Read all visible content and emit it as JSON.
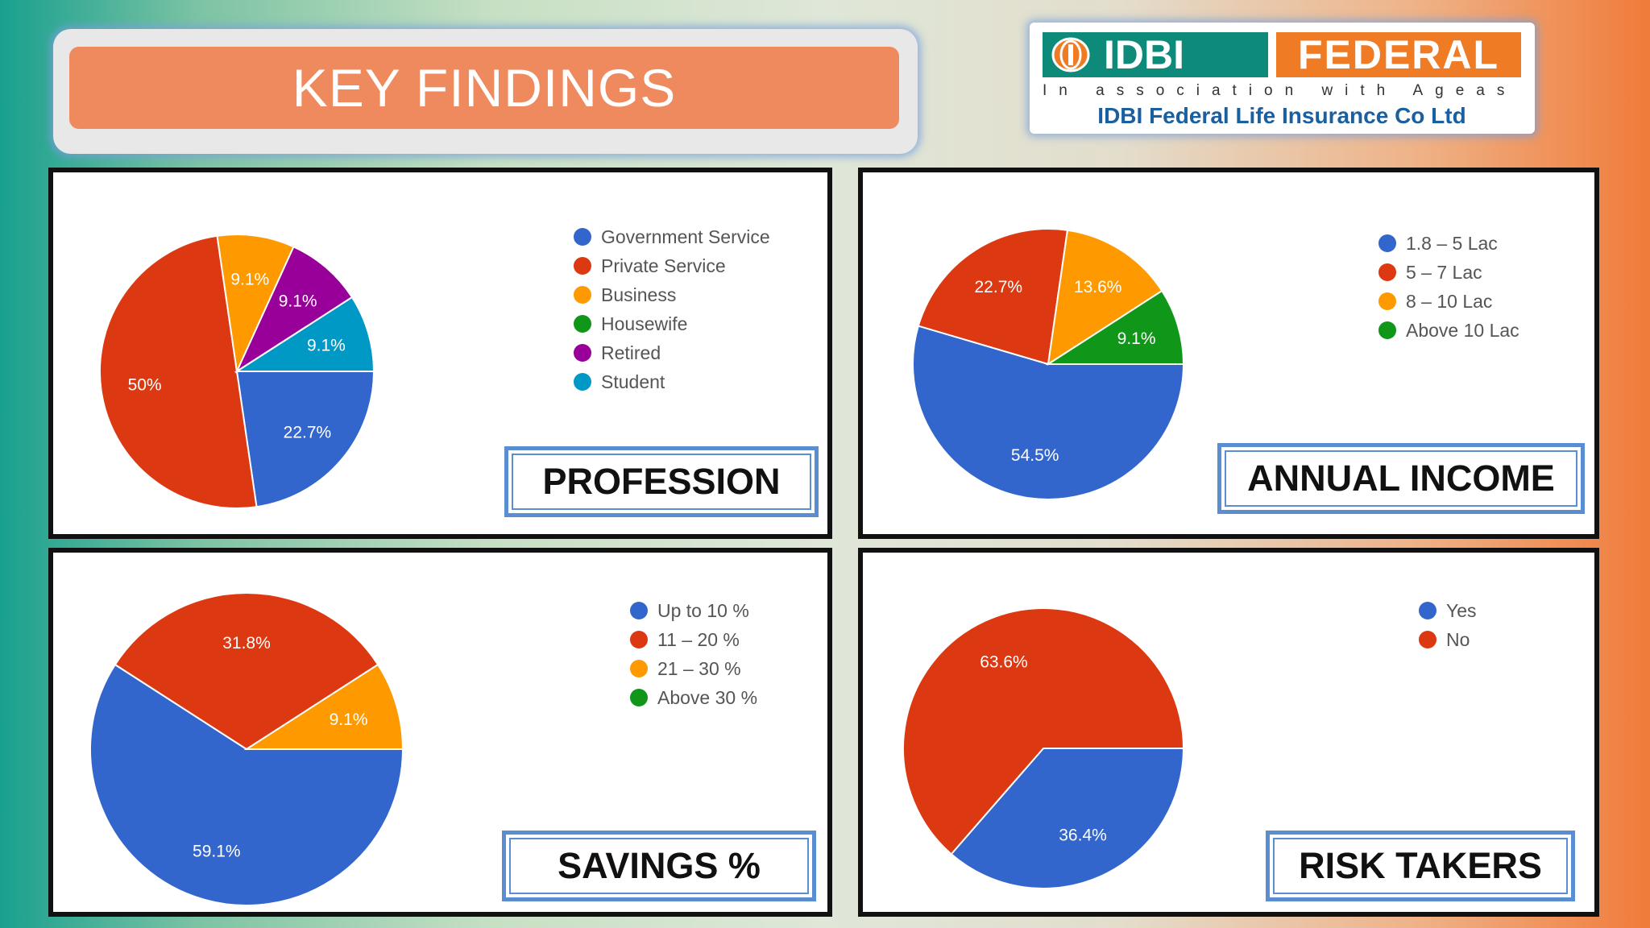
{
  "header": {
    "title": "KEY FINDINGS"
  },
  "logo": {
    "brand_left": "IDBI",
    "brand_right": "FEDERAL",
    "tagline": "In association with Ageas",
    "company": "IDBI Federal Life Insurance Co Ltd"
  },
  "colors": {
    "blue": "#3366cc",
    "red": "#dc3912",
    "orange": "#ff9900",
    "green": "#109618",
    "purple": "#990099",
    "cyan": "#0099c6"
  },
  "chart_data": [
    {
      "type": "pie",
      "title": "PROFESSION",
      "categories": [
        "Government Service",
        "Private Service",
        "Business",
        "Housewife",
        "Retired",
        "Student"
      ],
      "values": [
        22.7,
        50,
        9.1,
        0,
        9.1,
        9.1
      ],
      "labels": [
        "22.7%",
        "50%",
        "9.1%",
        "",
        "9.1%",
        "9.1%"
      ],
      "colors": [
        "#3366cc",
        "#dc3912",
        "#ff9900",
        "#109618",
        "#990099",
        "#0099c6"
      ],
      "legend": "right"
    },
    {
      "type": "pie",
      "title": "ANNUAL INCOME",
      "categories": [
        "1.8 – 5 Lac",
        "5 – 7 Lac",
        "8 – 10 Lac",
        "Above 10 Lac"
      ],
      "values": [
        54.5,
        22.7,
        13.6,
        9.1
      ],
      "labels": [
        "54.5%",
        "22.7%",
        "13.6%",
        "9.1%"
      ],
      "colors": [
        "#3366cc",
        "#dc3912",
        "#ff9900",
        "#109618"
      ],
      "legend": "right"
    },
    {
      "type": "pie",
      "title": "SAVINGS %",
      "categories": [
        "Up to 10 %",
        "11 – 20 %",
        "21 – 30 %",
        "Above 30 %"
      ],
      "values": [
        59.1,
        31.8,
        9.1,
        0
      ],
      "labels": [
        "59.1%",
        "31.8%",
        "9.1%",
        ""
      ],
      "colors": [
        "#3366cc",
        "#dc3912",
        "#ff9900",
        "#109618"
      ],
      "legend": "right"
    },
    {
      "type": "pie",
      "title": "RISK TAKERS",
      "categories": [
        "Yes",
        "No"
      ],
      "values": [
        36.4,
        63.6
      ],
      "labels": [
        "36.4%",
        "63.6%"
      ],
      "colors": [
        "#3366cc",
        "#dc3912"
      ],
      "legend": "right"
    }
  ]
}
